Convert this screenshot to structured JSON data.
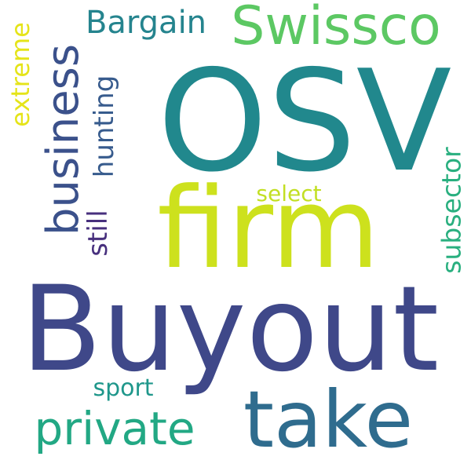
{
  "background": "#ffffff",
  "words": [
    {
      "text": "OSV",
      "color": "#21888d"
    },
    {
      "text": "firm",
      "color": "#cde11d"
    },
    {
      "text": "Buyout",
      "color": "#3f4889"
    },
    {
      "text": "take",
      "color": "#2f6c8e"
    },
    {
      "text": "Swissco",
      "color": "#5cc863"
    },
    {
      "text": "business",
      "color": "#3b518b"
    },
    {
      "text": "private",
      "color": "#22a884"
    },
    {
      "text": "Bargain",
      "color": "#25848e"
    },
    {
      "text": "extreme",
      "color": "#e5e419"
    },
    {
      "text": "hunting",
      "color": "#375b8d"
    },
    {
      "text": "subsector",
      "color": "#29af7f"
    },
    {
      "text": "still",
      "color": "#472f7d"
    },
    {
      "text": "select",
      "color": "#c2df23"
    },
    {
      "text": "sport",
      "color": "#1f978b"
    }
  ]
}
